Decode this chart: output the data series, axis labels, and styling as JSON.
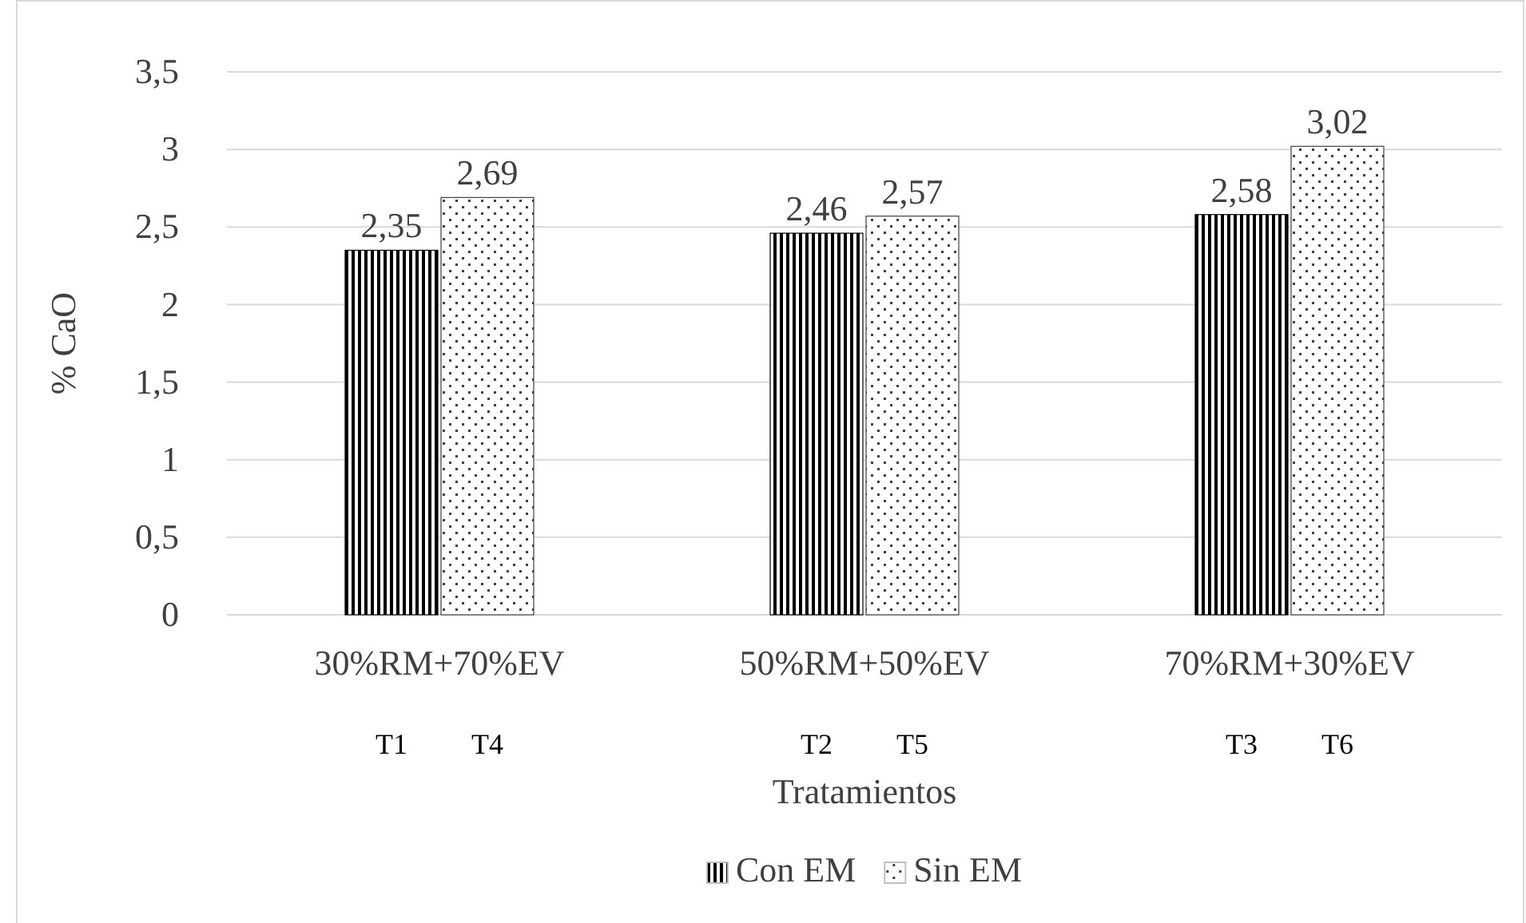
{
  "chart_data": {
    "type": "bar",
    "ylabel": "% CaO",
    "xlabel": "Tratamientos",
    "categories": [
      "30%RM+70%EV",
      "50%RM+50%EV",
      "70%RM+30%EV"
    ],
    "series": [
      {
        "name": "Con EM",
        "color": "#000000",
        "values": [
          2.35,
          2.46,
          2.58
        ],
        "value_labels": [
          "2,35",
          "2,46",
          "2,58"
        ]
      },
      {
        "name": "Sin EM",
        "color": "#404040",
        "values": [
          2.69,
          2.57,
          3.02
        ],
        "value_labels": [
          "2,69",
          "2,57",
          "3,02"
        ]
      }
    ],
    "ylim": [
      0,
      3.5
    ],
    "yticks": [
      0,
      {
        "value": 0.5,
        "label": "0,5"
      },
      1,
      {
        "value": 1.5,
        "label": "1,5"
      },
      2,
      {
        "value": 2.5,
        "label": "2,5"
      },
      3,
      {
        "value": 3.5,
        "label": "3,5"
      }
    ],
    "grid": "y",
    "legend": "bottom",
    "annotations": [
      "T1",
      "T4",
      "T2",
      "T5",
      "T3",
      "T6"
    ]
  }
}
